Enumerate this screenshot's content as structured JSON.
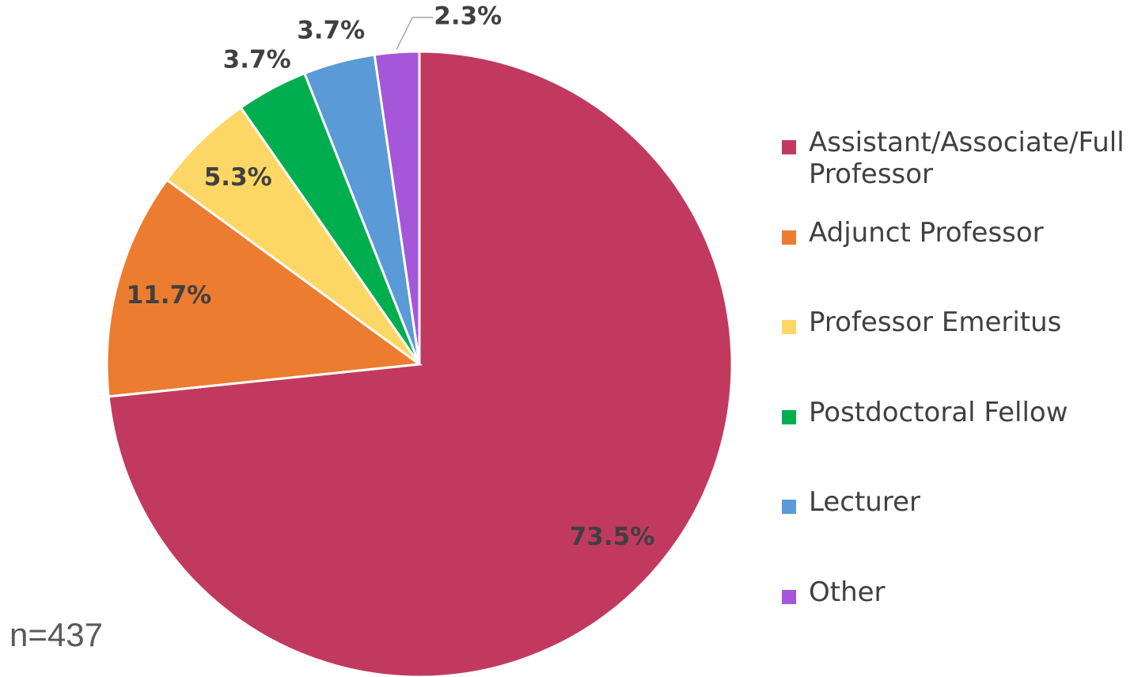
{
  "chart_data": {
    "type": "pie",
    "categories": [
      "Assistant/Associate/Full Professor",
      "Adjunct Professor",
      "Professor Emeritus",
      "Postdoctoral Fellow",
      "Lecturer",
      "Other"
    ],
    "values": [
      73.5,
      11.7,
      5.3,
      3.7,
      3.7,
      2.3
    ],
    "value_labels": [
      "73.5%",
      "11.7%",
      "5.3%",
      "3.7%",
      "3.7%",
      "2.3%"
    ],
    "colors": [
      "#c2395f",
      "#ec7c30",
      "#fcd765",
      "#00ae4f",
      "#5a9ad6",
      "#a656d9"
    ],
    "annotation": "n=437",
    "legend": "right"
  }
}
